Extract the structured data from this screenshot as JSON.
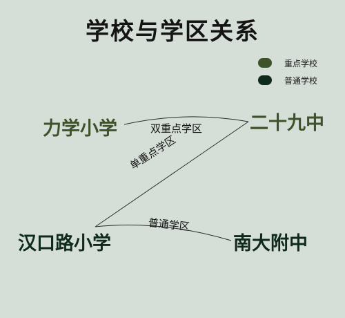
{
  "title": "学校与学区关系",
  "colors": {
    "background": "#d6ded8",
    "key_school": "#3d5228",
    "regular_school": "#0f2a1c",
    "edge": "#2a2a2a"
  },
  "legend": [
    {
      "label": "重点学校",
      "color": "#3d5228"
    },
    {
      "label": "普通学校",
      "color": "#0f2a1c"
    }
  ],
  "nodes": {
    "lixue": {
      "label": "力学小学",
      "type": "重点学校"
    },
    "ershijiu": {
      "label": "二十九中",
      "type": "重点学校"
    },
    "hankoulu": {
      "label": "汉口路小学",
      "type": "普通学校"
    },
    "nandafu": {
      "label": "南大附中",
      "type": "普通学校"
    }
  },
  "edges": [
    {
      "from": "力学小学",
      "to": "二十九中",
      "label": "双重点学区"
    },
    {
      "from": "二十九中",
      "to": "汉口路小学",
      "label": "单重点学区"
    },
    {
      "from": "汉口路小学",
      "to": "南大附中",
      "label": "普通学区"
    }
  ]
}
